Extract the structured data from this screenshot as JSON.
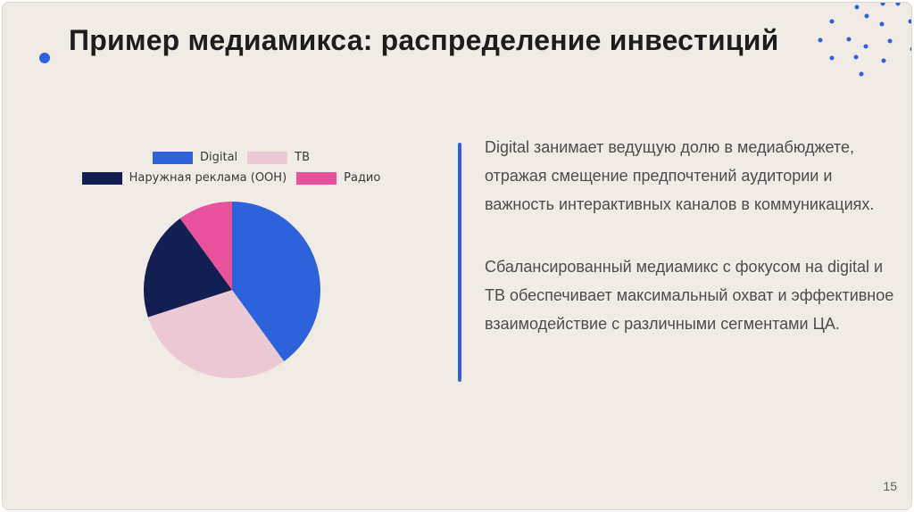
{
  "slide": {
    "title": "Пример медиамикса: распределение инвестиций",
    "page_number": "15",
    "paragraphs": [
      "Digital занимает ведущую долю в медиабюджете, отражая смещение предпочтений аудитории и важность интерактивных каналов в коммуникациях.",
      "Сбалансированный медиамикс с фокусом на digital и ТВ обеспечивает максимальный охват и эффективное взаимодействие с различными сегментами ЦА."
    ]
  },
  "colors": {
    "accent_blue": "#2e62da",
    "slide_background": "#f0ebe5",
    "title_text": "#1d1d1d",
    "body_text": "#4d4d4d",
    "legend_text": "#3a3a3a",
    "page_number_text": "#5e5e5e"
  },
  "chart_data": {
    "type": "pie",
    "title": "",
    "categories": [
      "Digital",
      "ТВ",
      "Наружная реклама (OOH)",
      "Радио"
    ],
    "values": [
      40,
      30,
      20,
      10
    ],
    "slice_colors": [
      "#2e62da",
      "#eccad5",
      "#131f52",
      "#e8529c"
    ],
    "start_angle_deg": 90,
    "direction": "clockwise",
    "legend_position": "top",
    "labels_on_slices": false
  }
}
